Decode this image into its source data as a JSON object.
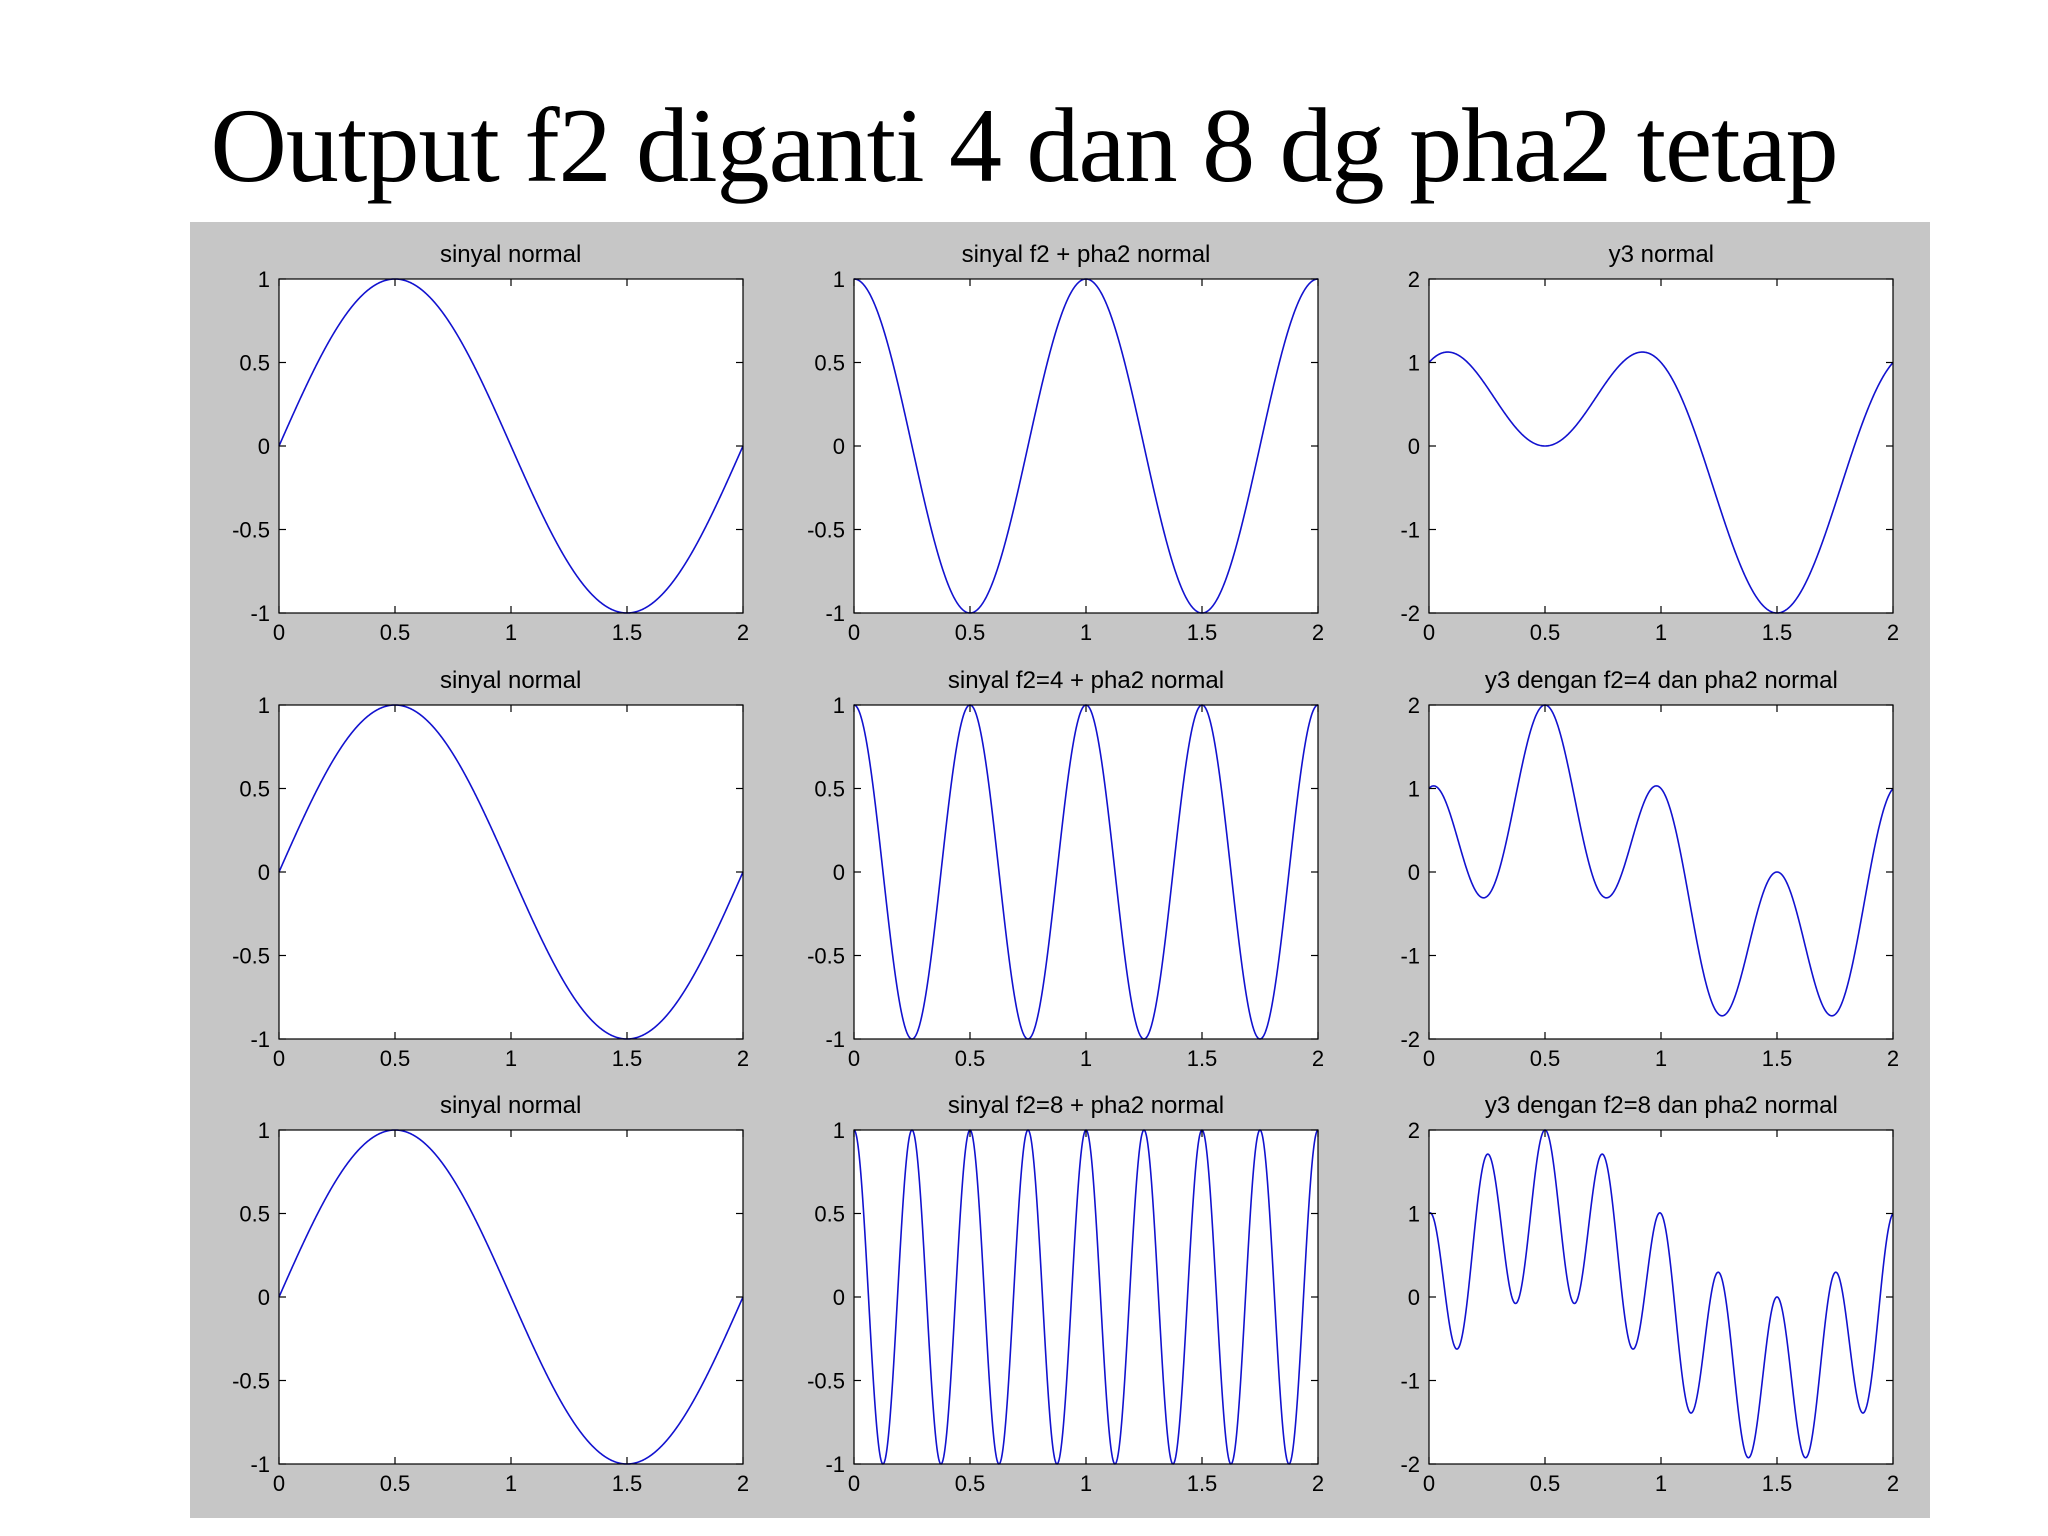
{
  "slide": {
    "title": "Output f2 diganti 4 dan 8 dg pha2 tetap"
  },
  "figure": {
    "bg_color": "#c6c6c6",
    "axes_bg_color": "#ffffff",
    "line_color": "#1212cf",
    "box_color": "#000000",
    "text_color": "#000000"
  },
  "chart_data": [
    {
      "type": "line",
      "title": "sinyal normal",
      "xlim": [
        0,
        2
      ],
      "ylim": [
        -1,
        1
      ],
      "xticks": [
        0,
        0.5,
        1,
        1.5,
        2
      ],
      "xtick_labels": [
        "0",
        "0.5",
        "1",
        "1.5",
        "2"
      ],
      "yticks": [
        -1,
        -0.5,
        0,
        0.5,
        1
      ],
      "ytick_labels": [
        "-1",
        "-0.5",
        "0",
        "0.5",
        "1"
      ],
      "components": [
        {
          "fn": "sin",
          "cycles": 1,
          "amp": 1
        }
      ]
    },
    {
      "type": "line",
      "title": "sinyal f2 + pha2 normal",
      "xlim": [
        0,
        2
      ],
      "ylim": [
        -1,
        1
      ],
      "xticks": [
        0,
        0.5,
        1,
        1.5,
        2
      ],
      "xtick_labels": [
        "0",
        "0.5",
        "1",
        "1.5",
        "2"
      ],
      "yticks": [
        -1,
        -0.5,
        0,
        0.5,
        1
      ],
      "ytick_labels": [
        "-1",
        "-0.5",
        "0",
        "0.5",
        "1"
      ],
      "components": [
        {
          "fn": "cos",
          "cycles": 2,
          "amp": 1
        }
      ]
    },
    {
      "type": "line",
      "title": "y3 normal",
      "xlim": [
        0,
        2
      ],
      "ylim": [
        -2,
        2
      ],
      "xticks": [
        0,
        0.5,
        1,
        1.5,
        2
      ],
      "xtick_labels": [
        "0",
        "0.5",
        "1",
        "1.5",
        "2"
      ],
      "yticks": [
        -2,
        -1,
        0,
        1,
        2
      ],
      "ytick_labels": [
        "-2",
        "-1",
        "0",
        "1",
        "2"
      ],
      "components": [
        {
          "fn": "sin",
          "cycles": 1,
          "amp": 1
        },
        {
          "fn": "cos",
          "cycles": 2,
          "amp": 1
        }
      ]
    },
    {
      "type": "line",
      "title": "sinyal normal",
      "xlim": [
        0,
        2
      ],
      "ylim": [
        -1,
        1
      ],
      "xticks": [
        0,
        0.5,
        1,
        1.5,
        2
      ],
      "xtick_labels": [
        "0",
        "0.5",
        "1",
        "1.5",
        "2"
      ],
      "yticks": [
        -1,
        -0.5,
        0,
        0.5,
        1
      ],
      "ytick_labels": [
        "-1",
        "-0.5",
        "0",
        "0.5",
        "1"
      ],
      "components": [
        {
          "fn": "sin",
          "cycles": 1,
          "amp": 1
        }
      ]
    },
    {
      "type": "line",
      "title": "sinyal f2=4 + pha2 normal",
      "xlim": [
        0,
        2
      ],
      "ylim": [
        -1,
        1
      ],
      "xticks": [
        0,
        0.5,
        1,
        1.5,
        2
      ],
      "xtick_labels": [
        "0",
        "0.5",
        "1",
        "1.5",
        "2"
      ],
      "yticks": [
        -1,
        -0.5,
        0,
        0.5,
        1
      ],
      "ytick_labels": [
        "-1",
        "-0.5",
        "0",
        "0.5",
        "1"
      ],
      "components": [
        {
          "fn": "cos",
          "cycles": 4,
          "amp": 1
        }
      ]
    },
    {
      "type": "line",
      "title": "y3 dengan f2=4 dan pha2 normal",
      "xlim": [
        0,
        2
      ],
      "ylim": [
        -2,
        2
      ],
      "xticks": [
        0,
        0.5,
        1,
        1.5,
        2
      ],
      "xtick_labels": [
        "0",
        "0.5",
        "1",
        "1.5",
        "2"
      ],
      "yticks": [
        -2,
        -1,
        0,
        1,
        2
      ],
      "ytick_labels": [
        "-2",
        "-1",
        "0",
        "1",
        "2"
      ],
      "components": [
        {
          "fn": "sin",
          "cycles": 1,
          "amp": 1
        },
        {
          "fn": "cos",
          "cycles": 4,
          "amp": 1
        }
      ]
    },
    {
      "type": "line",
      "title": "sinyal normal",
      "xlim": [
        0,
        2
      ],
      "ylim": [
        -1,
        1
      ],
      "xticks": [
        0,
        0.5,
        1,
        1.5,
        2
      ],
      "xtick_labels": [
        "0",
        "0.5",
        "1",
        "1.5",
        "2"
      ],
      "yticks": [
        -1,
        -0.5,
        0,
        0.5,
        1
      ],
      "ytick_labels": [
        "-1",
        "-0.5",
        "0",
        "0.5",
        "1"
      ],
      "components": [
        {
          "fn": "sin",
          "cycles": 1,
          "amp": 1
        }
      ]
    },
    {
      "type": "line",
      "title": "sinyal f2=8 + pha2 normal",
      "xlim": [
        0,
        2
      ],
      "ylim": [
        -1,
        1
      ],
      "xticks": [
        0,
        0.5,
        1,
        1.5,
        2
      ],
      "xtick_labels": [
        "0",
        "0.5",
        "1",
        "1.5",
        "2"
      ],
      "yticks": [
        -1,
        -0.5,
        0,
        0.5,
        1
      ],
      "ytick_labels": [
        "-1",
        "-0.5",
        "0",
        "0.5",
        "1"
      ],
      "components": [
        {
          "fn": "cos",
          "cycles": 8,
          "amp": 1
        }
      ]
    },
    {
      "type": "line",
      "title": "y3 dengan f2=8 dan pha2 normal",
      "xlim": [
        0,
        2
      ],
      "ylim": [
        -2,
        2
      ],
      "xticks": [
        0,
        0.5,
        1,
        1.5,
        2
      ],
      "xtick_labels": [
        "0",
        "0.5",
        "1",
        "1.5",
        "2"
      ],
      "yticks": [
        -2,
        -1,
        0,
        1,
        2
      ],
      "ytick_labels": [
        "-2",
        "-1",
        "0",
        "1",
        "2"
      ],
      "components": [
        {
          "fn": "sin",
          "cycles": 1,
          "amp": 1
        },
        {
          "fn": "cos",
          "cycles": 8,
          "amp": 1
        }
      ]
    }
  ]
}
